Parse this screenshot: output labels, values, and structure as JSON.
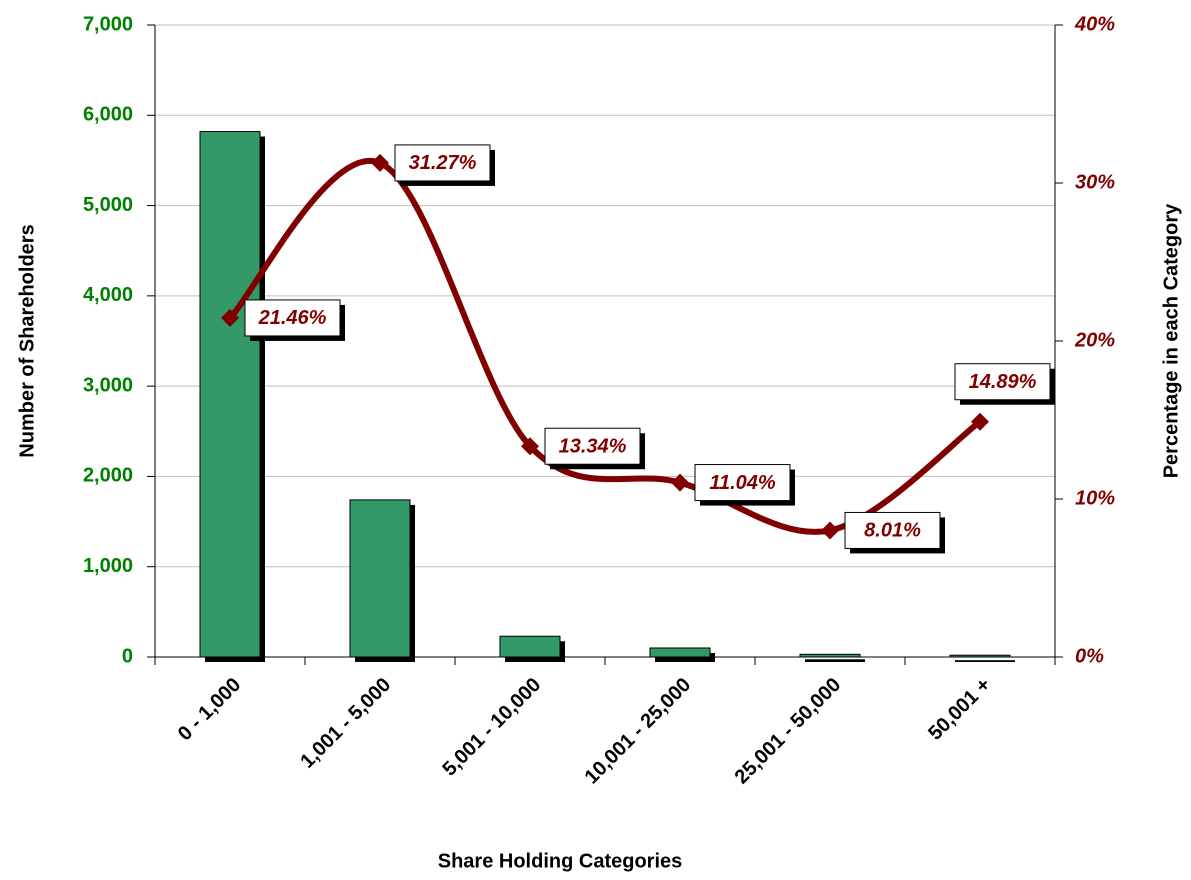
{
  "chart_data": {
    "type": "bar-line",
    "categories": [
      "0 - 1,000",
      "1,001 - 5,000",
      "5,001 - 10,000",
      "10,001 - 25,000",
      "25,001 - 50,000",
      "50,001 +"
    ],
    "series": [
      {
        "name": "Number of Shareholders",
        "type": "bar",
        "color": "#339966",
        "values": [
          5820,
          1740,
          230,
          100,
          30,
          20
        ]
      },
      {
        "name": "Percentage in each Category",
        "type": "line",
        "axis": "y2",
        "color": "#800000",
        "smooth": true,
        "values": [
          21.46,
          31.27,
          13.34,
          11.04,
          8.01,
          14.89
        ],
        "value_labels": [
          "21.46%",
          "31.27%",
          "13.34%",
          "11.04%",
          "8.01%",
          "14.89%"
        ]
      }
    ],
    "xlabel": "Share Holding Categories",
    "ylabel": "Number of Shareholders",
    "y2label": "Percentage in each Category",
    "ylim": [
      0,
      7000
    ],
    "yticks": [
      0,
      {
        "value": 1000,
        "label": "1,000"
      },
      {
        "value": 2000,
        "label": "2,000"
      },
      {
        "value": 3000,
        "label": "3,000"
      },
      {
        "value": 4000,
        "label": "4,000"
      },
      {
        "value": 5000,
        "label": "5,000"
      },
      {
        "value": 6000,
        "label": "6,000"
      },
      {
        "value": 7000,
        "label": "7,000"
      }
    ],
    "y2lim": [
      0,
      40
    ],
    "y2ticks": [
      {
        "value": 0,
        "label": "0%"
      },
      {
        "value": 10,
        "label": "10%"
      },
      {
        "value": 20,
        "label": "20%"
      },
      {
        "value": 30,
        "label": "30%"
      },
      {
        "value": 40,
        "label": "40%"
      }
    ],
    "grid": true,
    "ytick_color": "#008000",
    "y2tick_color": "#800000"
  }
}
